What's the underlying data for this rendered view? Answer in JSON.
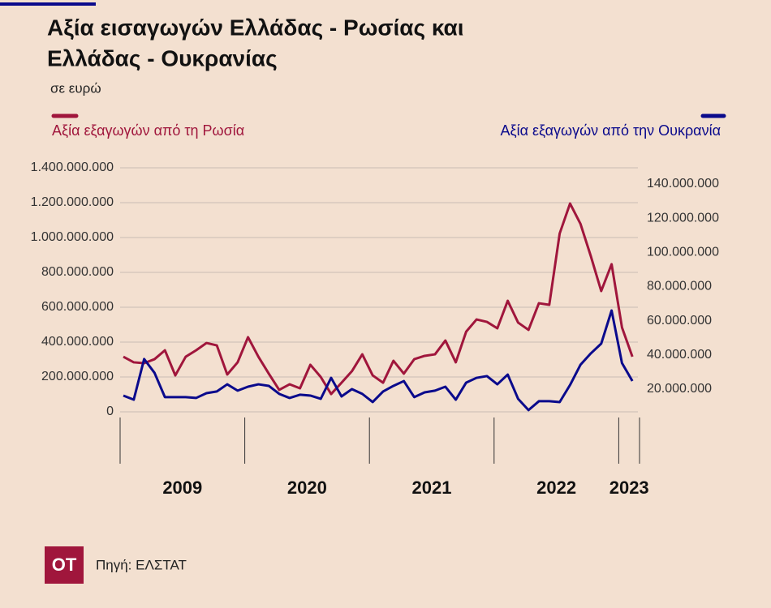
{
  "chart_data": {
    "type": "line",
    "title_lines": [
      "Αξία εισαγωγών Ελλάδας - Ρωσίας και",
      "Ελλάδας - Ουκρανίας"
    ],
    "subtitle": "σε ευρώ",
    "source": "Πηγή: ΕΛΣΤΑΤ",
    "logo": "OT",
    "categories": [
      null,
      null,
      null,
      null,
      null,
      null,
      null,
      null,
      null,
      null,
      null,
      null,
      null,
      null,
      null,
      null,
      null,
      null,
      null,
      null,
      null,
      null,
      null,
      null,
      null,
      null,
      null,
      null,
      null,
      null,
      null,
      null,
      null,
      null,
      null,
      null,
      null,
      null,
      null,
      null,
      null,
      null,
      null,
      null,
      null,
      null,
      null,
      null,
      null,
      null
    ],
    "year_groups": [
      {
        "label": "2009",
        "months": 12
      },
      {
        "label": "2020",
        "months": 12
      },
      {
        "label": "2021",
        "months": 12
      },
      {
        "label": "2022",
        "months": 12
      },
      {
        "label": "2023",
        "months": 2
      }
    ],
    "series": [
      {
        "name": "Αξία εξαγωγών από τη Ρωσία",
        "color": "#a0163c",
        "axis": "y",
        "values": [
          316000000,
          284000000,
          279000000,
          302000000,
          353000000,
          209000000,
          316000000,
          353000000,
          395000000,
          381000000,
          214000000,
          284000000,
          428000000,
          316000000,
          219000000,
          126000000,
          158000000,
          135000000,
          270000000,
          200000000,
          102000000,
          167000000,
          233000000,
          330000000,
          209000000,
          167000000,
          293000000,
          219000000,
          302000000,
          321000000,
          330000000,
          409000000,
          284000000,
          460000000,
          530000000,
          516000000,
          479000000,
          637000000,
          512000000,
          470000000,
          623000000,
          614000000,
          1023000000,
          1195000000,
          1079000000,
          893000000,
          693000000,
          847000000,
          484000000,
          316000000
        ]
      },
      {
        "name": "Αξία εξαγωγών από την Ουκρανία",
        "color": "#0a0a8c",
        "axis": "y2",
        "values": [
          16200000,
          13800000,
          37600000,
          29500000,
          15300000,
          15300000,
          15300000,
          14800000,
          17600000,
          18600000,
          22800000,
          19100000,
          21400000,
          22800000,
          21900000,
          17200000,
          14800000,
          16700000,
          16200000,
          14300000,
          26600000,
          15700000,
          20000000,
          17200000,
          12400000,
          18600000,
          21900000,
          24700000,
          15300000,
          18100000,
          19100000,
          21400000,
          13800000,
          23800000,
          26600000,
          27600000,
          22800000,
          28500000,
          14300000,
          7700000,
          12900000,
          12900000,
          12400000,
          22400000,
          34200000,
          40900000,
          46600000,
          66000000,
          35200000,
          24700000
        ]
      }
    ],
    "ylim": [
      0,
      1400000000
    ],
    "yticks": [
      0,
      {
        "value": 200000000,
        "label": "200.000.000"
      },
      {
        "value": 400000000,
        "label": "400.000.000"
      },
      {
        "value": 600000000,
        "label": "600.000.000"
      },
      {
        "value": 800000000,
        "label": "800.000.000"
      },
      {
        "value": 1000000000,
        "label": "1.000.000.000"
      },
      {
        "value": 1200000000,
        "label": "1.200.000.000"
      },
      {
        "value": 1400000000,
        "label": "1.400.000.000"
      }
    ],
    "y2lim": [
      6700000,
      149500000
    ],
    "y2ticks": [
      {
        "value": 20000000,
        "label": "20.000.000"
      },
      {
        "value": 40000000,
        "label": "40.000.000"
      },
      {
        "value": 60000000,
        "label": "60.000.000"
      },
      {
        "value": 80000000,
        "label": "80.000.000"
      },
      {
        "value": 100000000,
        "label": "100.000.000"
      },
      {
        "value": 120000000,
        "label": "120.000.000"
      },
      {
        "value": 140000000,
        "label": "140.000.000"
      }
    ],
    "grid": true
  }
}
